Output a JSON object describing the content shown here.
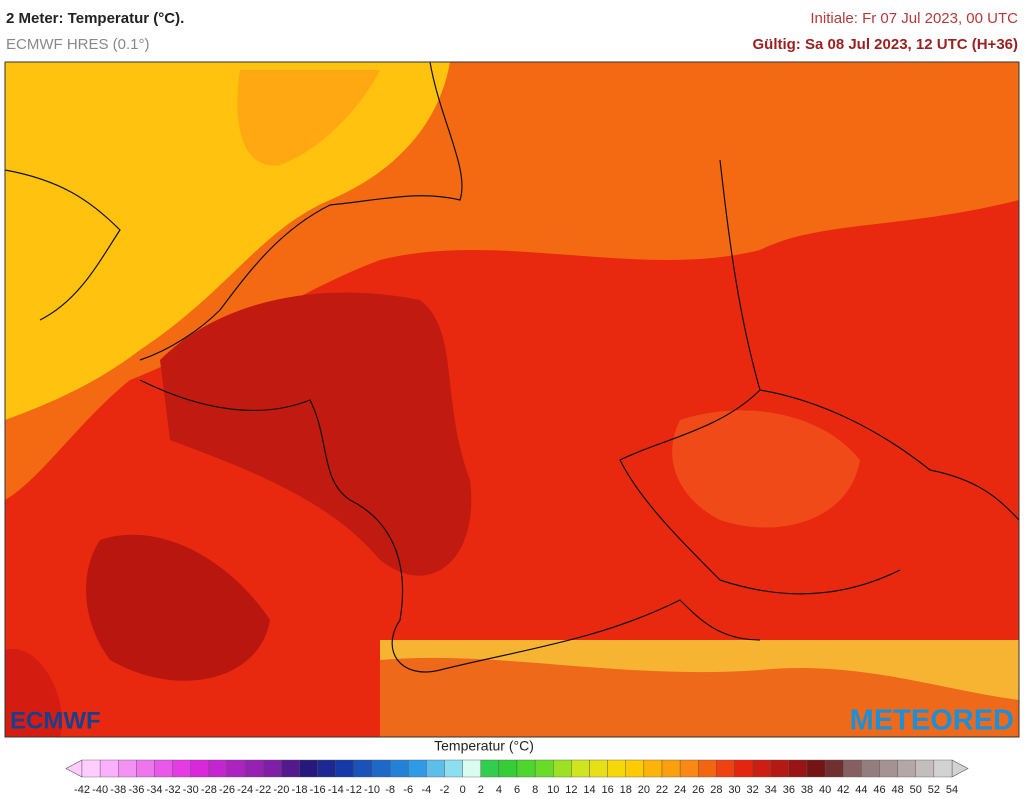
{
  "header": {
    "title": "2 Meter: Temperatur (°C).",
    "model": "ECMWF HRES (0.1°)",
    "init": "Initiale: Fr 07 Jul 2023, 00 UTC",
    "valid": "Gültig: Sa 08 Jul 2023, 12 UTC (H+36)"
  },
  "logos": {
    "left": "ECMWF",
    "right": "METEORED"
  },
  "legend": {
    "title": "Temperatur (°C)",
    "ticks": [
      -42,
      -40,
      -38,
      -36,
      -34,
      -32,
      -30,
      -28,
      -26,
      -24,
      -22,
      -20,
      -18,
      -16,
      -14,
      -12,
      -10,
      -8,
      -6,
      -4,
      -2,
      0,
      2,
      4,
      6,
      8,
      10,
      12,
      14,
      16,
      18,
      20,
      22,
      24,
      26,
      28,
      30,
      32,
      34,
      36,
      38,
      40,
      42,
      44,
      46,
      48,
      50,
      52,
      54
    ]
  }
}
